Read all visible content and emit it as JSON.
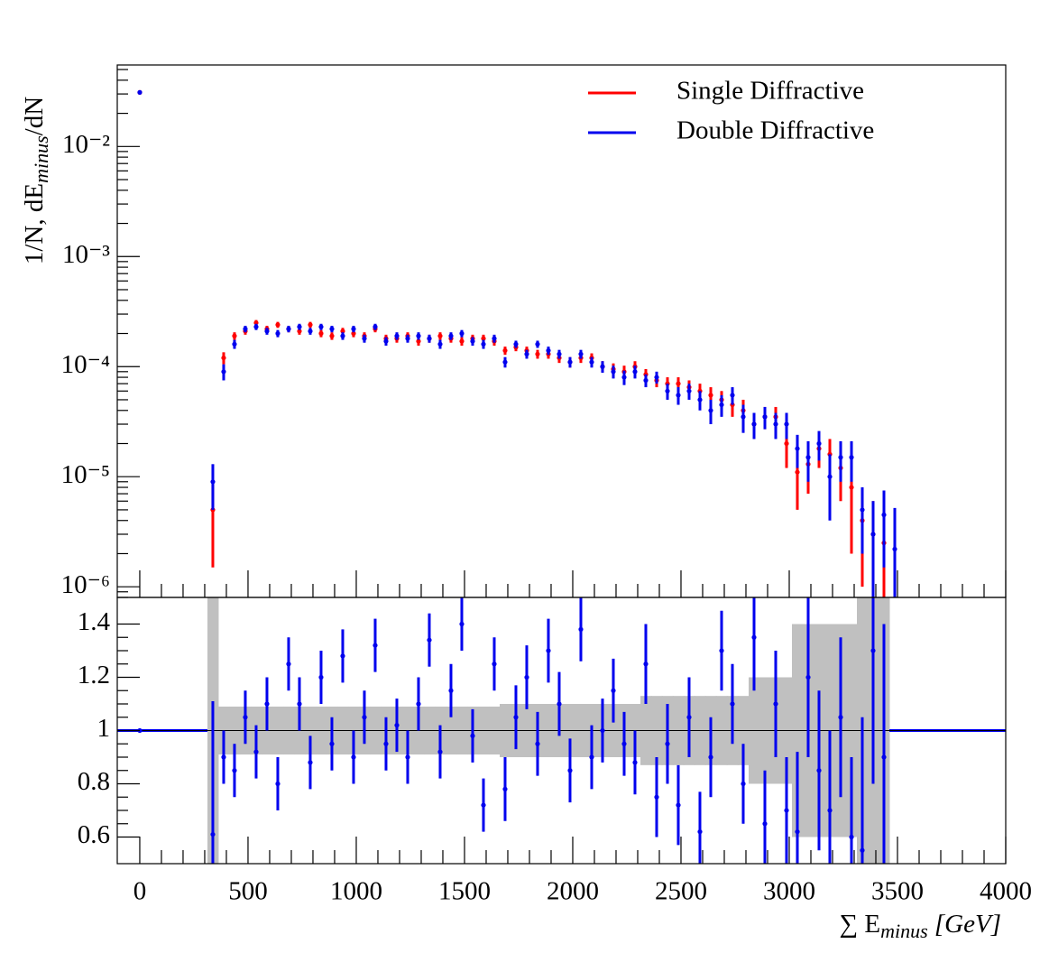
{
  "chart_data": [
    {
      "type": "errorbar",
      "log_y": true,
      "ylabel": "1/N, dE",
      "ylabel_sub": "minus",
      "ylabel_end": "/dN",
      "x": [
        0,
        337.5,
        387.5,
        437.5,
        487.5,
        537.5,
        587.5,
        637.5,
        687.5,
        737.5,
        787.5,
        837.5,
        887.5,
        937.5,
        987.5,
        1037.5,
        1087.5,
        1137.5,
        1187.5,
        1237.5,
        1287.5,
        1337.5,
        1387.5,
        1437.5,
        1487.5,
        1537.5,
        1587.5,
        1637.5,
        1687.5,
        1737.5,
        1787.5,
        1837.5,
        1887.5,
        1937.5,
        1987.5,
        2037.5,
        2087.5,
        2137.5,
        2187.5,
        2237.5,
        2287.5,
        2337.5,
        2387.5,
        2437.5,
        2487.5,
        2537.5,
        2587.5,
        2637.5,
        2687.5,
        2737.5,
        2787.5,
        2837.5,
        2887.5,
        2937.5,
        2987.5,
        3037.5,
        3087.5,
        3137.5,
        3187.5,
        3237.5,
        3287.5,
        3337.5,
        3387.5,
        3437.5,
        3487.5
      ],
      "series": [
        {
          "name": "Single Diffractive",
          "color": "#ff0000",
          "values": [
            0.031,
            5e-06,
            0.00012,
            0.00019,
            0.00021,
            0.00025,
            0.00022,
            0.00024,
            0.00022,
            0.00021,
            0.00024,
            0.0002,
            0.00019,
            0.00021,
            0.0002,
            0.00019,
            0.00022,
            0.00018,
            0.00018,
            0.00019,
            0.00017,
            0.00018,
            0.00019,
            0.00018,
            0.00017,
            0.00018,
            0.00018,
            0.00017,
            0.00014,
            0.00015,
            0.00014,
            0.00013,
            0.00013,
            0.00012,
            0.00011,
            0.00012,
            0.00012,
            0.0001,
            9.5e-05,
            9e-05,
            0.0001,
            8.5e-05,
            7.5e-05,
            7e-05,
            7e-05,
            6.5e-05,
            6e-05,
            5.5e-05,
            5e-05,
            4.5e-05,
            4e-05,
            3e-05,
            3.5e-05,
            3.5e-05,
            2e-05,
            1.1e-05,
            1.3e-05,
            1.8e-05,
            1.6e-05,
            1.2e-05,
            8e-06,
            4e-06,
            3e-06,
            2.5e-06,
            null
          ],
          "errors": [
            0.001,
            3.5e-06,
            1.5e-05,
            1.5e-05,
            1.5e-05,
            1.5e-05,
            1.5e-05,
            1.5e-05,
            1.5e-05,
            1.5e-05,
            1.5e-05,
            1.5e-05,
            1.5e-05,
            1.5e-05,
            1.5e-05,
            1.5e-05,
            1.5e-05,
            1.5e-05,
            1.5e-05,
            1.5e-05,
            1.5e-05,
            1.5e-05,
            1.5e-05,
            1.5e-05,
            1.5e-05,
            1.5e-05,
            1.5e-05,
            1.5e-05,
            1.2e-05,
            1.2e-05,
            1.2e-05,
            1.2e-05,
            1.2e-05,
            1.2e-05,
            1.2e-05,
            1.2e-05,
            1.2e-05,
            1.2e-05,
            1.2e-05,
            1.2e-05,
            1.2e-05,
            1e-05,
            1e-05,
            1e-05,
            1e-05,
            1e-05,
            1e-05,
            1e-05,
            1e-05,
            1e-05,
            1e-05,
            8e-06,
            8e-06,
            8e-06,
            8e-06,
            6e-06,
            6e-06,
            6e-06,
            6e-06,
            6e-06,
            6e-06,
            3e-06,
            3e-06,
            3e-06,
            null
          ]
        },
        {
          "name": "Double Diffractive",
          "color": "#0000ee",
          "values": [
            0.031,
            9e-06,
            9e-05,
            0.00016,
            0.00022,
            0.00023,
            0.00021,
            0.0002,
            0.00022,
            0.00023,
            0.00021,
            0.00023,
            0.00022,
            0.00019,
            0.00022,
            0.00018,
            0.00023,
            0.00017,
            0.00019,
            0.00018,
            0.00019,
            0.00018,
            0.00016,
            0.00019,
            0.0002,
            0.00017,
            0.00016,
            0.00018,
            0.00011,
            0.00016,
            0.00013,
            0.00016,
            0.00014,
            0.00013,
            0.00011,
            0.00013,
            0.00011,
            0.0001,
            9e-05,
            8e-05,
            9e-05,
            7.5e-05,
            8e-05,
            6e-05,
            5.5e-05,
            6e-05,
            5e-05,
            4e-05,
            4.5e-05,
            5.5e-05,
            3.5e-05,
            3e-05,
            3.5e-05,
            3e-05,
            3e-05,
            1.8e-05,
            1.5e-05,
            2e-05,
            1e-05,
            1.5e-05,
            1.5e-05,
            5e-06,
            3e-06,
            4.5e-06,
            2.2e-06
          ],
          "errors": [
            0.001,
            4e-06,
            1.5e-05,
            1.5e-05,
            1.5e-05,
            1.5e-05,
            1.5e-05,
            1.5e-05,
            1.5e-05,
            1.5e-05,
            1.5e-05,
            1.5e-05,
            1.5e-05,
            1.5e-05,
            1.5e-05,
            1.5e-05,
            1.5e-05,
            1.5e-05,
            1.5e-05,
            1.5e-05,
            1.5e-05,
            1.5e-05,
            1.5e-05,
            1.5e-05,
            1.5e-05,
            1.5e-05,
            1.5e-05,
            1.5e-05,
            1.2e-05,
            1.2e-05,
            1.2e-05,
            1.2e-05,
            1.2e-05,
            1.2e-05,
            1.2e-05,
            1.2e-05,
            1.2e-05,
            1.2e-05,
            1.2e-05,
            1.2e-05,
            1.2e-05,
            1e-05,
            1e-05,
            1e-05,
            1e-05,
            1e-05,
            1e-05,
            1e-05,
            1e-05,
            1e-05,
            1e-05,
            8e-06,
            8e-06,
            8e-06,
            8e-06,
            6e-06,
            6e-06,
            6e-06,
            6e-06,
            6e-06,
            6e-06,
            3e-06,
            3e-06,
            3e-06,
            3e-06
          ]
        }
      ],
      "xlim": [
        -104,
        4000
      ],
      "xticks": [
        0,
        500,
        1000,
        1500,
        2000,
        2500,
        3000,
        3500,
        4000
      ],
      "ylim": [
        8e-07,
        0.055
      ],
      "yticks": [
        {
          "value": 1e-06,
          "label": "10⁻⁶"
        },
        {
          "value": 1e-05,
          "label": "10⁻⁵"
        },
        {
          "value": 0.0001,
          "label": "10⁻⁴"
        },
        {
          "value": 0.001,
          "label": "10⁻³"
        },
        {
          "value": 0.01,
          "label": "10⁻²"
        }
      ],
      "legend": "upper right"
    },
    {
      "type": "ratio",
      "color": "#0000ee",
      "band_color": "#c0c0c0",
      "xlabel": "∑ E",
      "xlabel_sub": "minus",
      "xlabel_end": " [GeV]",
      "x": [
        0,
        337.5,
        387.5,
        437.5,
        487.5,
        537.5,
        587.5,
        637.5,
        687.5,
        737.5,
        787.5,
        837.5,
        887.5,
        937.5,
        987.5,
        1037.5,
        1087.5,
        1137.5,
        1187.5,
        1237.5,
        1287.5,
        1337.5,
        1387.5,
        1437.5,
        1487.5,
        1537.5,
        1587.5,
        1637.5,
        1687.5,
        1737.5,
        1787.5,
        1837.5,
        1887.5,
        1937.5,
        1987.5,
        2037.5,
        2087.5,
        2137.5,
        2187.5,
        2237.5,
        2287.5,
        2337.5,
        2387.5,
        2437.5,
        2487.5,
        2537.5,
        2587.5,
        2637.5,
        2687.5,
        2737.5,
        2787.5,
        2837.5,
        2887.5,
        2937.5,
        2987.5,
        3037.5,
        3087.5,
        3137.5,
        3187.5,
        3237.5,
        3287.5,
        3337.5,
        3387.5,
        3437.5,
        3487.5
      ],
      "values": [
        1,
        0.61,
        0.9,
        0.85,
        1.05,
        0.92,
        1.1,
        0.8,
        1.25,
        1.1,
        0.88,
        1.2,
        0.95,
        1.28,
        0.9,
        1.05,
        1.32,
        0.95,
        1.02,
        0.9,
        1.1,
        1.34,
        0.92,
        1.15,
        1.4,
        0.98,
        0.72,
        1.25,
        0.78,
        1.05,
        1.2,
        0.95,
        1.3,
        1.1,
        0.85,
        1.38,
        0.9,
        1.0,
        1.15,
        0.95,
        0.88,
        1.25,
        0.75,
        0.95,
        0.72,
        1.05,
        0.62,
        0.9,
        1.3,
        1.1,
        0.8,
        1.35,
        0.65,
        1.1,
        0.7,
        0.62,
        1.2,
        0.85,
        0.7,
        1.05,
        0.6,
        0.55,
        1.3,
        0.9,
        null
      ],
      "errors": [
        0,
        0.5,
        0.1,
        0.1,
        0.1,
        0.1,
        0.1,
        0.1,
        0.1,
        0.1,
        0.1,
        0.1,
        0.1,
        0.1,
        0.1,
        0.1,
        0.1,
        0.1,
        0.1,
        0.1,
        0.1,
        0.1,
        0.1,
        0.1,
        0.1,
        0.1,
        0.1,
        0.1,
        0.12,
        0.12,
        0.12,
        0.12,
        0.12,
        0.12,
        0.12,
        0.12,
        0.12,
        0.12,
        0.12,
        0.12,
        0.12,
        0.15,
        0.15,
        0.15,
        0.15,
        0.15,
        0.15,
        0.15,
        0.15,
        0.15,
        0.15,
        0.2,
        0.2,
        0.2,
        0.2,
        0.3,
        0.3,
        0.3,
        0.3,
        0.3,
        0.3,
        0.5,
        0.5,
        0.5,
        null
      ],
      "band": [
        null,
        0.5,
        0.09,
        0.09,
        0.09,
        0.09,
        0.09,
        0.09,
        0.09,
        0.09,
        0.09,
        0.09,
        0.09,
        0.09,
        0.09,
        0.09,
        0.09,
        0.09,
        0.09,
        0.09,
        0.09,
        0.09,
        0.09,
        0.09,
        0.09,
        0.09,
        0.09,
        0.09,
        0.1,
        0.1,
        0.1,
        0.1,
        0.1,
        0.1,
        0.1,
        0.1,
        0.1,
        0.1,
        0.1,
        0.1,
        0.1,
        0.13,
        0.13,
        0.13,
        0.13,
        0.13,
        0.13,
        0.13,
        0.13,
        0.13,
        0.13,
        0.2,
        0.2,
        0.2,
        0.2,
        0.4,
        0.4,
        0.4,
        0.4,
        0.4,
        0.4,
        0.6,
        0.6,
        0.6,
        null
      ],
      "xlim": [
        -104,
        4000
      ],
      "xticks": [
        0,
        500,
        1000,
        1500,
        2000,
        2500,
        3000,
        3500,
        4000
      ],
      "ylim": [
        0.5,
        1.5
      ],
      "yticks": [
        0.6,
        0.8,
        1,
        1.2,
        1.4
      ]
    }
  ]
}
